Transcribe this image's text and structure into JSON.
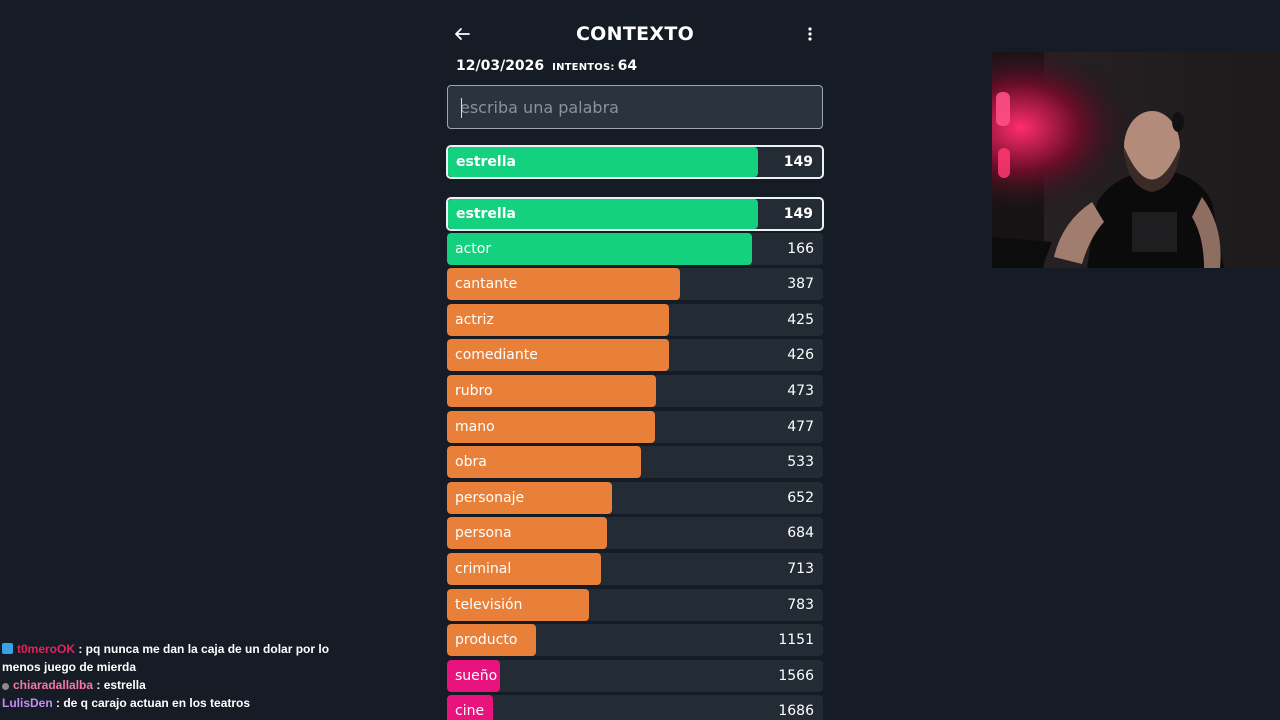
{
  "header": {
    "title": "CONTEXTO",
    "date": "12/03/2026",
    "intentos_label": "INTENTOS:",
    "intentos_value": "64"
  },
  "search": {
    "placeholder": "escriba una palabra"
  },
  "highlight": {
    "word": "estrella",
    "rank": 149,
    "color": "#14d180"
  },
  "colors": {
    "green": "#14d180",
    "orange": "#e8803a",
    "pink": "#e8137d",
    "track": "#232b34"
  },
  "guesses": [
    {
      "word": "estrella",
      "rank": 149,
      "color": "green",
      "fill": 0.83,
      "highlight": true
    },
    {
      "word": "actor",
      "rank": 166,
      "color": "green",
      "fill": 0.81
    },
    {
      "word": "cantante",
      "rank": 387,
      "color": "orange",
      "fill": 0.62
    },
    {
      "word": "actriz",
      "rank": 425,
      "color": "orange",
      "fill": 0.59
    },
    {
      "word": "comediante",
      "rank": 426,
      "color": "orange",
      "fill": 0.59
    },
    {
      "word": "rubro",
      "rank": 473,
      "color": "orange",
      "fill": 0.555
    },
    {
      "word": "mano",
      "rank": 477,
      "color": "orange",
      "fill": 0.553
    },
    {
      "word": "obra",
      "rank": 533,
      "color": "orange",
      "fill": 0.515
    },
    {
      "word": "personaje",
      "rank": 652,
      "color": "orange",
      "fill": 0.44
    },
    {
      "word": "persona",
      "rank": 684,
      "color": "orange",
      "fill": 0.425
    },
    {
      "word": "criminal",
      "rank": 713,
      "color": "orange",
      "fill": 0.41
    },
    {
      "word": "televisión",
      "rank": 783,
      "color": "orange",
      "fill": 0.377
    },
    {
      "word": "producto",
      "rank": 1151,
      "color": "orange",
      "fill": 0.237
    },
    {
      "word": "sueño",
      "rank": 1566,
      "color": "pink",
      "fill": 0.14
    },
    {
      "word": "cine",
      "rank": 1686,
      "color": "pink",
      "fill": 0.123
    }
  ],
  "chat": [
    {
      "user": "t0meroOK",
      "user_color": "#e0245e",
      "badge": "prime-icon",
      "message": "pq nunca me dan la caja de un dolar por lo menos juego de mierda"
    },
    {
      "user": "chiaradallalba",
      "user_color": "#f277a8",
      "badge": "turbo-icon",
      "message": "estrella"
    },
    {
      "user": "LulisDen",
      "user_color": "#c38cf2",
      "badge": "",
      "message": "de q carajo actuan en los teatros"
    }
  ]
}
